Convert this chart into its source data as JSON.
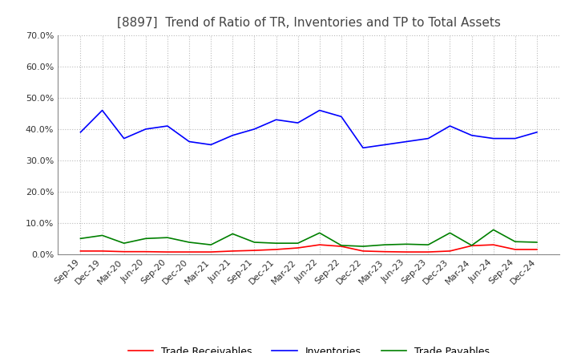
{
  "title": "[8897]  Trend of Ratio of TR, Inventories and TP to Total Assets",
  "x_labels": [
    "Sep-19",
    "Dec-19",
    "Mar-20",
    "Jun-20",
    "Sep-20",
    "Dec-20",
    "Mar-21",
    "Jun-21",
    "Sep-21",
    "Dec-21",
    "Mar-22",
    "Jun-22",
    "Sep-22",
    "Dec-22",
    "Mar-23",
    "Jun-23",
    "Sep-23",
    "Dec-23",
    "Mar-24",
    "Jun-24",
    "Sep-24",
    "Dec-24"
  ],
  "trade_receivables": [
    0.01,
    0.01,
    0.008,
    0.008,
    0.007,
    0.007,
    0.007,
    0.01,
    0.012,
    0.015,
    0.02,
    0.03,
    0.025,
    0.01,
    0.008,
    0.007,
    0.007,
    0.01,
    0.027,
    0.03,
    0.015,
    0.015
  ],
  "inventories": [
    0.39,
    0.46,
    0.37,
    0.4,
    0.41,
    0.36,
    0.35,
    0.38,
    0.4,
    0.43,
    0.42,
    0.46,
    0.44,
    0.34,
    0.35,
    0.36,
    0.37,
    0.41,
    0.38,
    0.37,
    0.37,
    0.39
  ],
  "trade_payables": [
    0.05,
    0.06,
    0.035,
    0.05,
    0.053,
    0.038,
    0.03,
    0.065,
    0.038,
    0.035,
    0.035,
    0.068,
    0.028,
    0.025,
    0.03,
    0.032,
    0.03,
    0.068,
    0.028,
    0.078,
    0.04,
    0.038
  ],
  "tr_color": "#ff0000",
  "inv_color": "#0000ff",
  "tp_color": "#008000",
  "ylim": [
    0.0,
    0.7
  ],
  "yticks": [
    0.0,
    0.1,
    0.2,
    0.3,
    0.4,
    0.5,
    0.6,
    0.7
  ],
  "grid_color": "#bbbbbb",
  "background_color": "#ffffff",
  "title_fontsize": 11,
  "title_color": "#444444"
}
